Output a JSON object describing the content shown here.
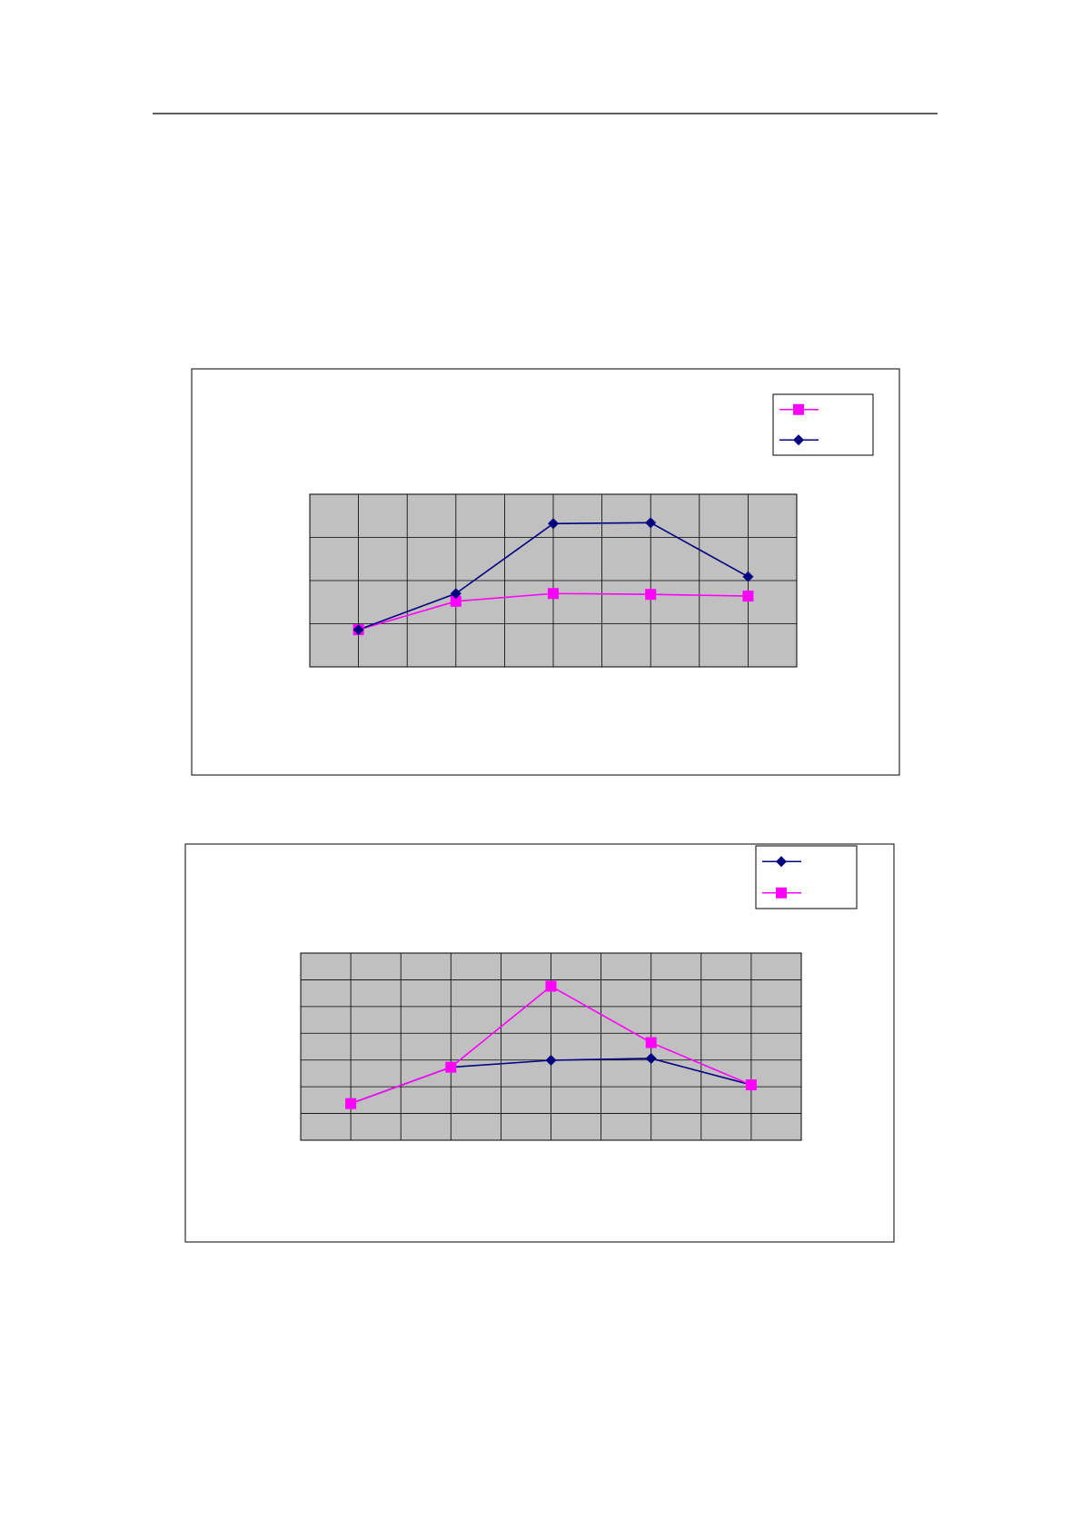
{
  "chart_data": [
    {
      "type": "line",
      "legend": "top-right",
      "grid": true,
      "plot_background": "#c0c0c0",
      "xlim": [
        0,
        10
      ],
      "xticks": [
        0,
        1,
        2,
        3,
        4,
        5,
        6,
        7,
        8,
        9,
        10
      ],
      "ylim": [
        0,
        4
      ],
      "yticks": [
        0,
        1,
        2,
        3,
        4
      ],
      "x": [
        1,
        3,
        5,
        7,
        9
      ],
      "series": [
        {
          "color": "#ff00ff",
          "marker": "square",
          "values": [
            0.86,
            1.52,
            1.7,
            1.68,
            1.64
          ]
        },
        {
          "color": "#000080",
          "marker": "diamond",
          "values": [
            0.86,
            1.7,
            3.32,
            3.34,
            2.09
          ]
        }
      ]
    },
    {
      "type": "line",
      "legend": "top-right",
      "grid": true,
      "plot_background": "#c0c0c0",
      "xlim": [
        0,
        10
      ],
      "xticks": [
        0,
        1,
        2,
        3,
        4,
        5,
        6,
        7,
        8,
        9,
        10
      ],
      "ylim": [
        0,
        7
      ],
      "yticks": [
        0,
        1,
        2,
        3,
        4,
        5,
        6,
        7
      ],
      "x": [
        1,
        3,
        5,
        7,
        9
      ],
      "series": [
        {
          "color": "#000080",
          "marker": "diamond",
          "values": [
            1.37,
            2.73,
            2.99,
            3.06,
            2.07
          ]
        },
        {
          "color": "#ff00ff",
          "marker": "square",
          "values": [
            1.37,
            2.73,
            5.76,
            3.65,
            2.07
          ]
        }
      ]
    }
  ]
}
